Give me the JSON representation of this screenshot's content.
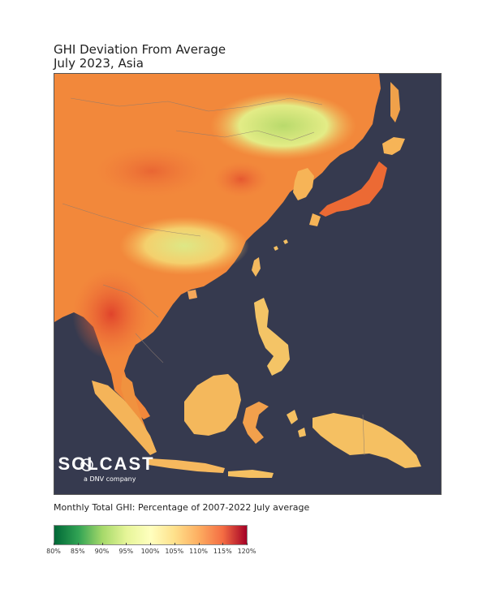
{
  "title": {
    "line1": "GHI Deviation From Average",
    "line2": "July 2023, Asia"
  },
  "logo": {
    "brand": "SOLCAST",
    "tagline": "a DNV company"
  },
  "caption": "Monthly Total GHI: Percentage of 2007-2022 July average",
  "legend": {
    "ticks": [
      "80%",
      "85%",
      "90%",
      "95%",
      "100%",
      "105%",
      "110%",
      "115%",
      "120%"
    ],
    "colors": [
      "#006837",
      "#31a354",
      "#a6d96a",
      "#e6f598",
      "#ffffbf",
      "#fee08b",
      "#fdae61",
      "#f46d43",
      "#a50026"
    ]
  },
  "colors": {
    "ocean": "#363a4f",
    "land_warm": "#f58a3c",
    "land_hot": "#e0432b",
    "land_mild": "#f8c35a",
    "land_cool": "#cfe37a",
    "land_green": "#a9d46a"
  }
}
